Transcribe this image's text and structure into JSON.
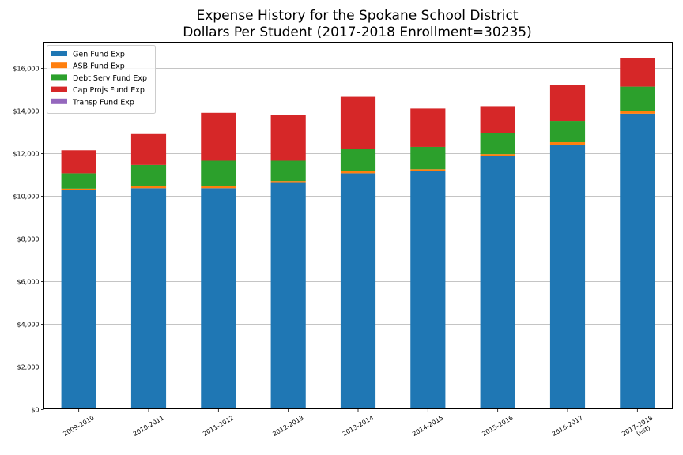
{
  "chart_data": {
    "type": "bar",
    "stacked": true,
    "title_lines": [
      "Expense History for the Spokane School District",
      "Dollars Per Student (2017-2018 Enrollment=30235)"
    ],
    "xlabel": "",
    "ylabel": "",
    "categories": [
      "2009-2010",
      "2010-2011",
      "2011-2012",
      "2012-2013",
      "2013-2014",
      "2014-2015",
      "2015-2016",
      "2016-2017",
      "2017-2018\n(est)"
    ],
    "ylim": [
      0,
      17200
    ],
    "yticks": [
      0,
      2000,
      4000,
      6000,
      8000,
      10000,
      12000,
      14000,
      16000
    ],
    "ytick_labels": [
      "$0",
      "$2,000",
      "$4,000",
      "$6,000",
      "$8,000",
      "$10,000",
      "$12,000",
      "$14,000",
      "$16,000"
    ],
    "grid": "horizontal",
    "legend_position": "top-left",
    "series": [
      {
        "name": "Gen Fund Exp",
        "color": "#1f77b4",
        "values": [
          10250,
          10350,
          10350,
          10600,
          11050,
          11150,
          11850,
          12400,
          13850
        ]
      },
      {
        "name": "ASB Fund Exp",
        "color": "#ff7f0e",
        "values": [
          80,
          90,
          90,
          90,
          90,
          90,
          100,
          110,
          120
        ]
      },
      {
        "name": "Debt Serv Fund Exp",
        "color": "#2ca02c",
        "values": [
          720,
          1000,
          1200,
          950,
          1050,
          1050,
          1000,
          1000,
          1150
        ]
      },
      {
        "name": "Cap Projs Fund Exp",
        "color": "#d62728",
        "values": [
          1080,
          1450,
          2250,
          2150,
          2450,
          1800,
          1250,
          1700,
          1350
        ]
      },
      {
        "name": "Transp Fund Exp",
        "color": "#9467bd",
        "values": [
          0,
          0,
          0,
          0,
          0,
          0,
          0,
          0,
          0
        ]
      }
    ]
  }
}
